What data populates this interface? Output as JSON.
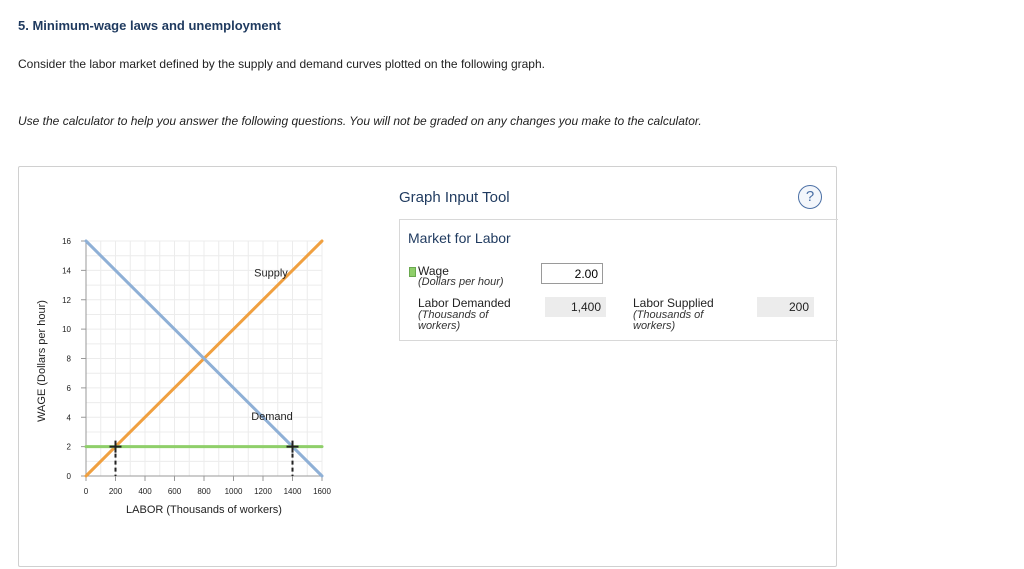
{
  "question": {
    "title": "5. Minimum-wage laws and unemployment",
    "intro": "Consider the labor market defined by the supply and demand curves plotted on the following graph.",
    "note": "Use the calculator to help you answer the following questions. You will not be graded on any changes you make to the calculator."
  },
  "chart_data": {
    "type": "line",
    "xlabel": "LABOR (Thousands of workers)",
    "ylabel": "WAGE (Dollars per hour)",
    "xlim": [
      0,
      1600
    ],
    "ylim": [
      0,
      16
    ],
    "x_ticks": [
      "0",
      "200",
      "400",
      "600",
      "800",
      "1000",
      "1200",
      "1400",
      "1600"
    ],
    "y_ticks": [
      "0",
      "2",
      "4",
      "6",
      "8",
      "10",
      "12",
      "14",
      "16"
    ],
    "grid": true,
    "series": [
      {
        "name": "Supply",
        "color": "#f0a040",
        "points": [
          [
            0,
            0
          ],
          [
            1600,
            16
          ]
        ]
      },
      {
        "name": "Demand",
        "color": "#8fb0d6",
        "points": [
          [
            0,
            16
          ],
          [
            1600,
            0
          ]
        ]
      },
      {
        "name": "",
        "color": "#8fcf6a",
        "points": [
          [
            0,
            2
          ],
          [
            1600,
            2
          ]
        ]
      }
    ],
    "markers": [
      {
        "x": 200,
        "y": 2
      },
      {
        "x": 1400,
        "y": 2
      }
    ]
  },
  "tool": {
    "title": "Graph Input Tool",
    "help_icon": "question-circle-icon",
    "market_title": "Market for Labor",
    "wage_label": "Wage",
    "wage_unit": "(Dollars per hour)",
    "wage_value": "2.00",
    "demanded_label": "Labor Demanded",
    "demanded_unit_1": "(Thousands of",
    "demanded_unit_2": "workers)",
    "demanded_value": "1,400",
    "supplied_label": "Labor Supplied",
    "supplied_unit_1": "(Thousands of",
    "supplied_unit_2": "workers)",
    "supplied_value": "200"
  }
}
